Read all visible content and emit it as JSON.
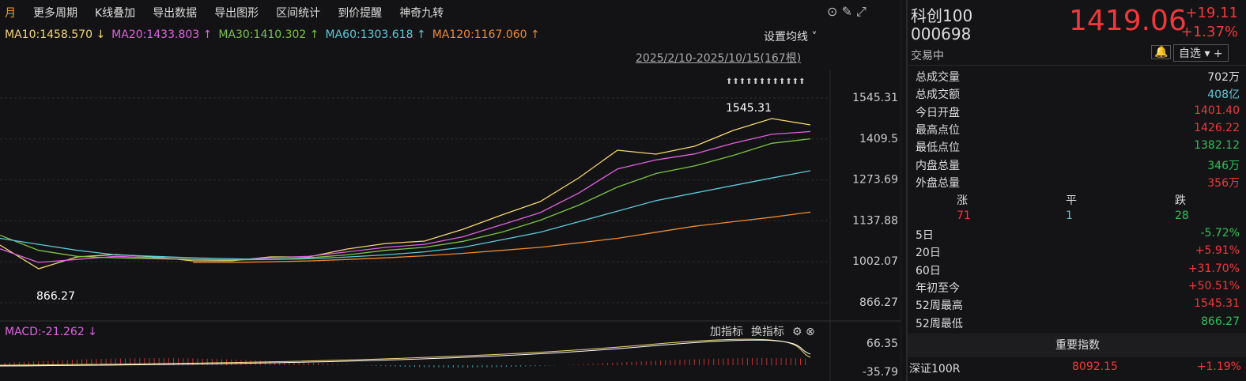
{
  "toolbar": [
    "月",
    "更多周期",
    "K线叠加",
    "导出数据",
    "导出图形",
    "区间统计",
    "到价提醒",
    "神奇九转"
  ],
  "ma_legend": [
    {
      "label": "MA10:1458.570 ↓",
      "color": "#f5d76e"
    },
    {
      "label": "MA20:1433.803 ↑",
      "color": "#e060e0"
    },
    {
      "label": "MA30:1410.302 ↑",
      "color": "#7cc242"
    },
    {
      "label": "MA60:1303.618 ↑",
      "color": "#5cc8d8"
    },
    {
      "label": "MA120:1167.060 ↑",
      "color": "#f08a30"
    }
  ],
  "ma_settings": "设置均线 ˅",
  "range": "2025/2/10-2025/10/15(167根)",
  "chart_data": {
    "type": "line",
    "ylim": [
      808.5,
      1639.7
    ],
    "yticks": [
      866.27,
      1002.07,
      1137.88,
      1273.69,
      1409.5,
      1545.31
    ],
    "grid": true,
    "annotations": [
      "1545.31",
      "866.27"
    ],
    "series": [
      {
        "color": "#f5d76e",
        "values": [
          1057.6,
          979,
          1018.3,
          1026.2,
          1018.3,
          1005.2,
          1005.2,
          1018.3,
          1018.3,
          1044.5,
          1062.9,
          1070.7,
          1110,
          1157.2,
          1201.8,
          1280.5,
          1372.3,
          1359.2,
          1385.4,
          1437.8,
          1477.1,
          1456.2
        ]
      },
      {
        "color": "#e060e0",
        "values": [
          1045,
          1000,
          1010,
          1020,
          1015,
          1010,
          1008,
          1015,
          1020,
          1035,
          1050,
          1060,
          1085,
          1125,
          1165,
          1230,
          1310,
          1340,
          1360,
          1395,
          1425,
          1434
        ]
      },
      {
        "color": "#7cc242",
        "values": [
          1090,
          1040,
          1020,
          1015,
          1012,
          1010,
          1008,
          1010,
          1015,
          1025,
          1040,
          1050,
          1070,
          1100,
          1140,
          1190,
          1250,
          1295,
          1320,
          1355,
          1395,
          1410
        ]
      },
      {
        "color": "#5cc8d8",
        "values": [
          1080,
          1060,
          1040,
          1025,
          1020,
          1015,
          1012,
          1010,
          1012,
          1018,
          1025,
          1035,
          1050,
          1075,
          1100,
          1135,
          1170,
          1205,
          1230,
          1255,
          1280,
          1304
        ]
      },
      {
        "color": "#f08a30",
        "values": [
          null,
          null,
          null,
          null,
          null,
          1000,
          1000,
          1002,
          1005,
          1010,
          1015,
          1022,
          1030,
          1040,
          1050,
          1065,
          1080,
          1100,
          1120,
          1135,
          1150,
          1167
        ]
      }
    ]
  },
  "macd": {
    "label": "MACD:-21.262 ↓",
    "buttons": [
      "加指标",
      "换指标"
    ],
    "ticks": [
      "66.35",
      "-35.79"
    ]
  },
  "quote": {
    "name": "科创100",
    "code": "000698",
    "status": "交易中",
    "price": "1419.06",
    "change": "+19.11",
    "pct": "+1.37%",
    "watch": "自选"
  },
  "stats": [
    [
      "总成交量",
      "702万",
      "#ddd"
    ],
    [
      "总成交额",
      "408亿",
      "#5cc8d8"
    ],
    [
      "今日开盘",
      "1401.40",
      "#f0383c"
    ],
    [
      "最高点位",
      "1426.22",
      "#f0383c"
    ],
    [
      "最低点位",
      "1382.12",
      "#2ec05a"
    ],
    [
      "内盘总量",
      "346万",
      "#2ec05a"
    ],
    [
      "外盘总量",
      "356万",
      "#f0383c"
    ]
  ],
  "breadth": {
    "headers": [
      "涨",
      "平",
      "跌"
    ],
    "values": [
      "71",
      "1",
      "28"
    ]
  },
  "perf": [
    [
      "5日",
      "-5.72%",
      "#2ec05a"
    ],
    [
      "20日",
      "+5.91%",
      "#f0383c"
    ],
    [
      "60日",
      "+31.70%",
      "#f0383c"
    ],
    [
      "年初至今",
      "+50.51%",
      "#f0383c"
    ],
    [
      "52周最高",
      "1545.31",
      "#f0383c"
    ],
    [
      "52周最低",
      "866.27",
      "#2ec05a"
    ]
  ],
  "index": {
    "title": "重要指数",
    "row": [
      "深证100R",
      "8092.15",
      "+1.19%"
    ]
  }
}
